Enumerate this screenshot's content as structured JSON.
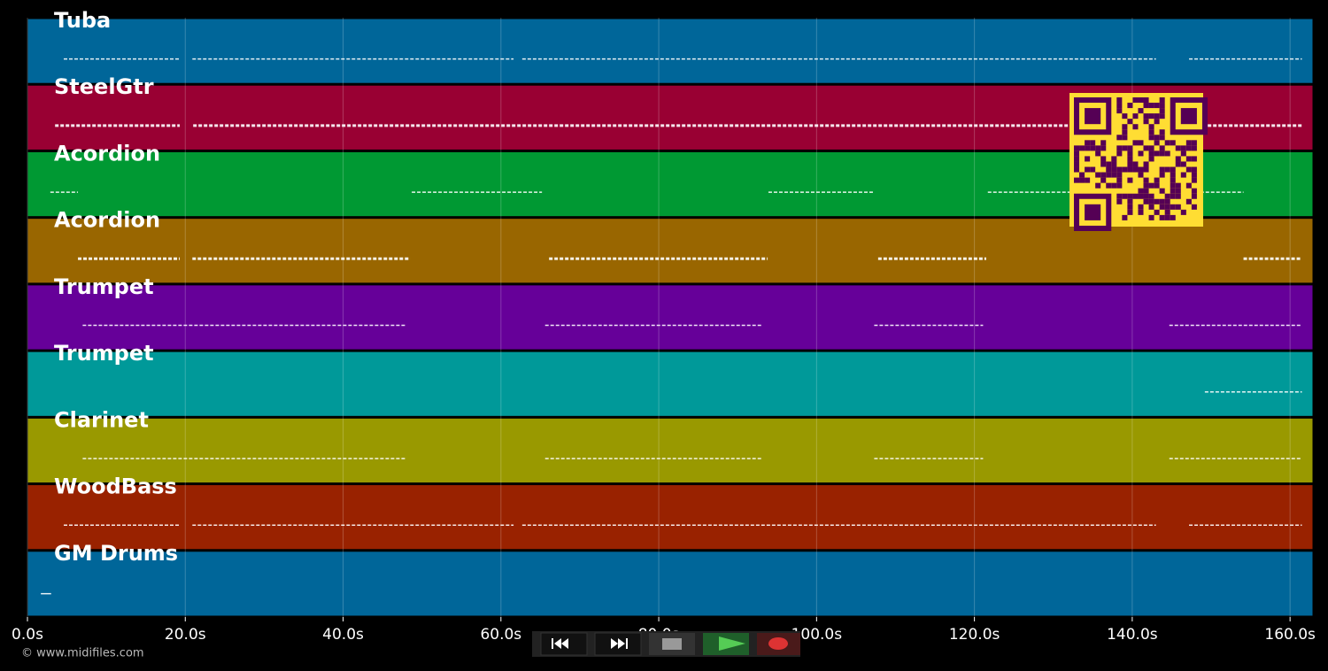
{
  "tracks": [
    {
      "name": "Tuba",
      "color": "#006699",
      "segments": [
        [
          4.6,
          19.3
        ],
        [
          20.9,
          61.6
        ],
        [
          62.7,
          143.0
        ],
        [
          147.2,
          161.5
        ]
      ]
    },
    {
      "name": "SteelGtr",
      "color": "#990033",
      "segments": [
        [
          3.5,
          19.3
        ],
        [
          21.0,
          161.5
        ]
      ]
    },
    {
      "name": "Acordion",
      "color": "#009933",
      "segments": [
        [
          2.9,
          6.4
        ],
        [
          48.7,
          65.2
        ],
        [
          93.9,
          107.3
        ],
        [
          121.7,
          154.1
        ]
      ]
    },
    {
      "name": "Acordion",
      "color": "#996600",
      "segments": [
        [
          6.4,
          19.3
        ],
        [
          20.9,
          48.5
        ],
        [
          66.1,
          93.8
        ],
        [
          107.8,
          121.5
        ],
        [
          154.1,
          161.5
        ]
      ]
    },
    {
      "name": "Trumpet",
      "color": "#660099",
      "segments": [
        [
          7.0,
          48.0
        ],
        [
          65.6,
          93.2
        ],
        [
          107.3,
          121.1
        ],
        [
          144.7,
          161.5
        ]
      ]
    },
    {
      "name": "Trumpet",
      "color": "#009999",
      "segments": [
        [
          149.2,
          161.5
        ]
      ]
    },
    {
      "name": "Clarinet",
      "color": "#999900",
      "segments": [
        [
          7.0,
          48.0
        ],
        [
          65.6,
          93.2
        ],
        [
          107.3,
          121.1
        ],
        [
          144.7,
          161.5
        ]
      ]
    },
    {
      "name": "WoodBass",
      "color": "#992200",
      "segments": [
        [
          4.6,
          19.3
        ],
        [
          20.9,
          61.6
        ],
        [
          62.7,
          143.0
        ],
        [
          147.2,
          161.5
        ]
      ]
    },
    {
      "name": "GM Drums",
      "color": "#006699",
      "segments": [
        [
          1.7,
          3.0
        ]
      ]
    }
  ],
  "x_axis": {
    "xlim": [
      0,
      162.9
    ],
    "xticks": [
      {
        "value": 0,
        "label": "0.0s"
      },
      {
        "value": 20,
        "label": "20.0s"
      },
      {
        "value": 40,
        "label": "40.0s"
      },
      {
        "value": 60,
        "label": "60.0s"
      },
      {
        "value": 80,
        "label": "80.0s"
      },
      {
        "value": 100,
        "label": "100.0s"
      },
      {
        "value": 120,
        "label": "120.0s"
      },
      {
        "value": 140,
        "label": "140.0s"
      },
      {
        "value": 160,
        "label": "160.0s"
      }
    ]
  },
  "footer": {
    "copyright": "© www.midifiles.com"
  }
}
